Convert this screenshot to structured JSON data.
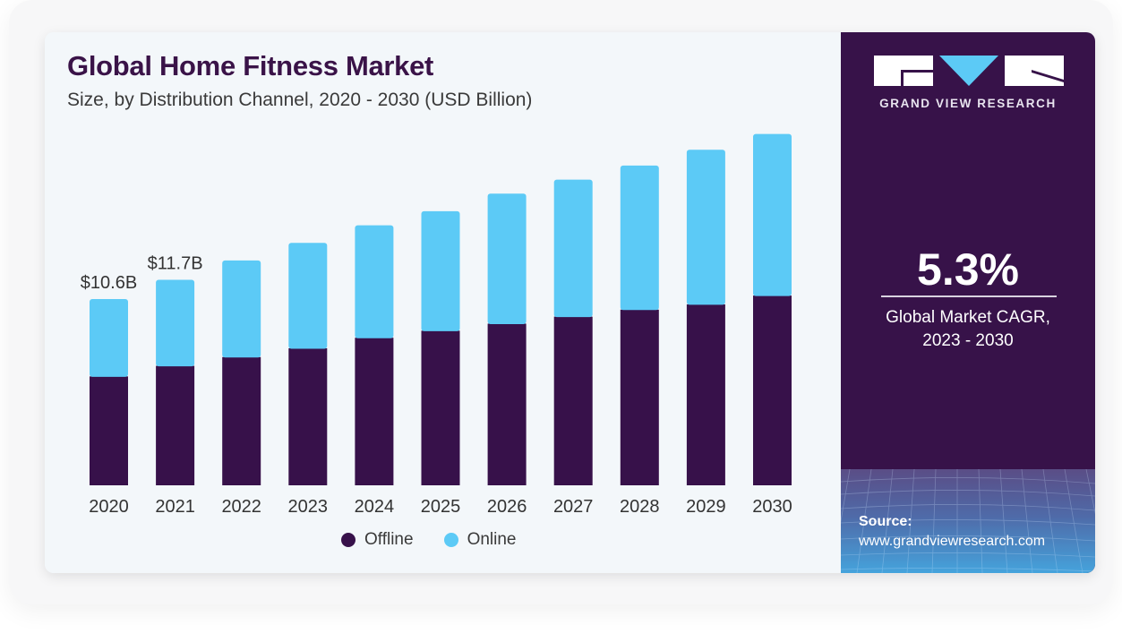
{
  "header": {
    "title": "Global Home Fitness Market",
    "subtitle": "Size, by Distribution Channel, 2020 - 2030 (USD Billion)"
  },
  "brand": {
    "logo_text": "GRAND VIEW RESEARCH",
    "logo_icon": "gvr-logo-icon"
  },
  "stat": {
    "value": "5.3%",
    "label_line1": "Global Market CAGR,",
    "label_line2": "2023 - 2030"
  },
  "source": {
    "label": "Source:",
    "url": "www.grandviewresearch.com"
  },
  "colors": {
    "offline": "#37114a",
    "online": "#5ccaf6",
    "panel": "#371249",
    "title": "#3a1348"
  },
  "chart_data": {
    "type": "bar",
    "stacked": true,
    "title": "Global Home Fitness Market",
    "subtitle": "Size, by Distribution Channel, 2020 - 2030 (USD Billion)",
    "xlabel": "",
    "ylabel": "USD Billion",
    "ylim": [
      0,
      21
    ],
    "grid": false,
    "legend_position": "bottom-center",
    "categories": [
      "2020",
      "2021",
      "2022",
      "2023",
      "2024",
      "2025",
      "2026",
      "2027",
      "2028",
      "2029",
      "2030"
    ],
    "series": [
      {
        "name": "Offline",
        "color": "#37114a",
        "values": [
          6.2,
          6.8,
          7.3,
          7.8,
          8.4,
          8.8,
          9.2,
          9.6,
          10.0,
          10.3,
          10.8
        ]
      },
      {
        "name": "Online",
        "color": "#5ccaf6",
        "values": [
          4.4,
          4.9,
          5.5,
          6.0,
          6.4,
          6.8,
          7.4,
          7.8,
          8.2,
          8.8,
          9.2
        ]
      }
    ],
    "annotations": [
      {
        "category": "2020",
        "text": "$10.6B"
      },
      {
        "category": "2021",
        "text": "$11.7B"
      }
    ]
  }
}
